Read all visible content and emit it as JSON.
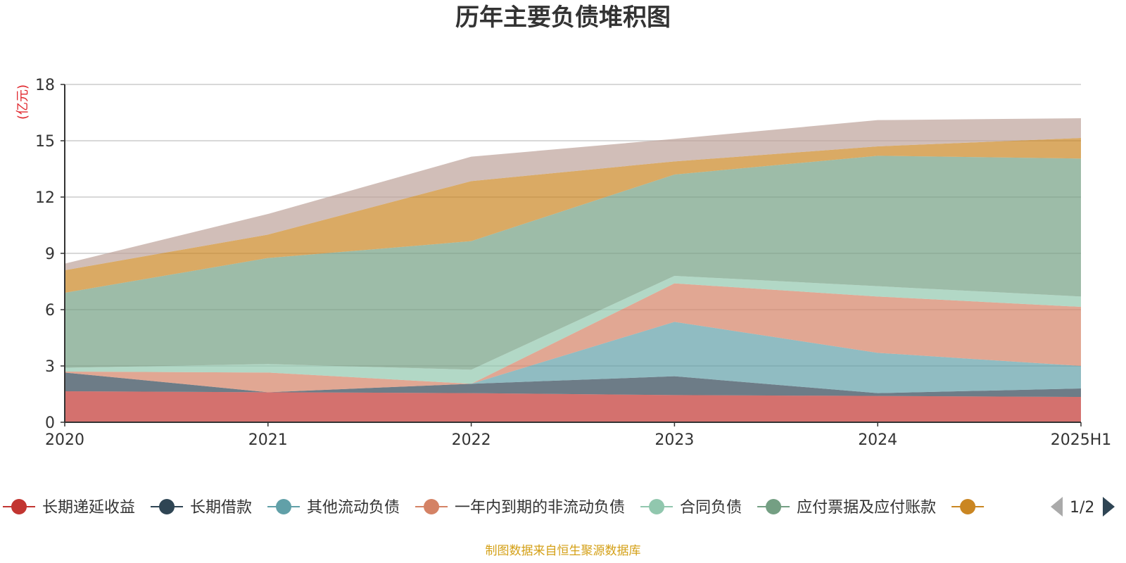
{
  "chart_data": {
    "type": "area",
    "stacked": true,
    "title": "历年主要负债堆积图",
    "unit_label": "(亿元)",
    "x": [
      "2020",
      "2021",
      "2022",
      "2023",
      "2024",
      "2025H1"
    ],
    "ylim": [
      0,
      18
    ],
    "yticks": [
      "0",
      "3",
      "6",
      "9",
      "12",
      "15",
      "18"
    ],
    "grid": true,
    "legend_position": "bottom",
    "series": [
      {
        "name": "长期递延收益",
        "color": "#c23531",
        "values": [
          1.65,
          1.6,
          1.55,
          1.45,
          1.4,
          1.35
        ]
      },
      {
        "name": "长期借款",
        "color": "#2f4554",
        "values": [
          1.0,
          0.0,
          0.5,
          1.0,
          0.15,
          0.45
        ]
      },
      {
        "name": "其他流动负债",
        "color": "#61a0a8",
        "values": [
          0.0,
          0.0,
          0.0,
          2.9,
          2.15,
          1.2
        ]
      },
      {
        "name": "一年内到期的非流动负债",
        "color": "#d48265",
        "values": [
          0.05,
          1.05,
          0.0,
          2.05,
          3.0,
          3.15
        ]
      },
      {
        "name": "合同负债",
        "color": "#91c7ae",
        "values": [
          0.2,
          0.45,
          0.75,
          0.4,
          0.55,
          0.55
        ]
      },
      {
        "name": "应付票据及应付账款",
        "color": "#749f83",
        "values": [
          4.0,
          5.65,
          6.85,
          5.4,
          6.95,
          7.35
        ]
      },
      {
        "name": "",
        "color": "#ca8622",
        "values": [
          1.2,
          1.25,
          3.2,
          0.7,
          0.5,
          1.1
        ]
      },
      {
        "name": "",
        "color": "#bda29a",
        "values": [
          0.35,
          1.1,
          1.3,
          1.2,
          1.4,
          1.05
        ]
      }
    ],
    "legend_page": "1/2"
  },
  "source_note": "制图数据来自恒生聚源数据库"
}
